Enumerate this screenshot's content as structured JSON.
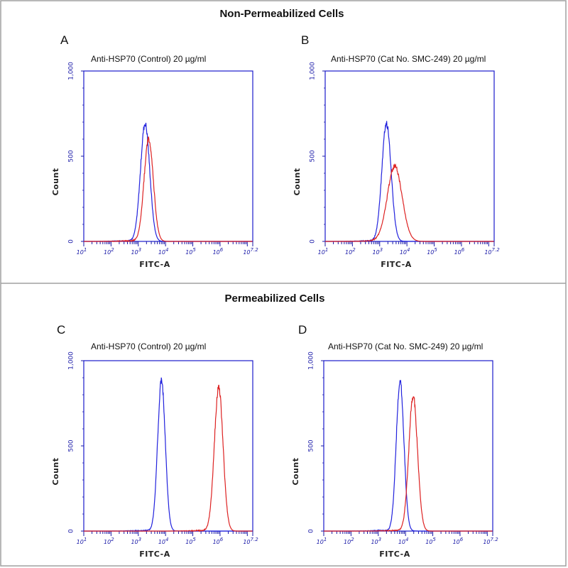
{
  "sections": [
    {
      "title": "Non-Permeabilized Cells"
    },
    {
      "title": "Permeabilized Cells"
    }
  ],
  "colors": {
    "frame": "#999999",
    "plot_border": "#1a1acc",
    "tick_color": "#1a1aa8",
    "control_series": "#2222dd",
    "test_series": "#dd2222"
  },
  "chart_data": [
    {
      "type": "line",
      "panel": "A",
      "title": "Anti-HSP70 (Control) 20 µg/ml",
      "xlabel": "FITC-A",
      "ylabel": "Count",
      "xscale": "log",
      "xlim": [
        1,
        7.2
      ],
      "ylim": [
        0,
        1000
      ],
      "yticks": [
        "0",
        "500",
        "1,000"
      ],
      "xticks": [
        {
          "base": "10",
          "exp": "1"
        },
        {
          "base": "10",
          "exp": "2"
        },
        {
          "base": "10",
          "exp": "3"
        },
        {
          "base": "10",
          "exp": "4"
        },
        {
          "base": "10",
          "exp": "5"
        },
        {
          "base": "10",
          "exp": "6"
        },
        {
          "base": "10",
          "exp": "7.2"
        }
      ],
      "series": [
        {
          "color": "blue",
          "peak_log": 3.25,
          "peak_count": 690,
          "width": 0.17
        },
        {
          "color": "red",
          "peak_log": 3.38,
          "peak_count": 600,
          "width": 0.17
        }
      ]
    },
    {
      "type": "line",
      "panel": "B",
      "title": "Anti-HSP70 (Cat No. SMC-249) 20 µg/ml",
      "xlabel": "FITC-A",
      "ylabel": "Count",
      "xscale": "log",
      "xlim": [
        1,
        7.2
      ],
      "ylim": [
        0,
        1000
      ],
      "yticks": [
        "0",
        "500",
        "1,000"
      ],
      "xticks": [
        {
          "base": "10",
          "exp": "1"
        },
        {
          "base": "10",
          "exp": "2"
        },
        {
          "base": "10",
          "exp": "3"
        },
        {
          "base": "10",
          "exp": "4"
        },
        {
          "base": "10",
          "exp": "5"
        },
        {
          "base": "10",
          "exp": "6"
        },
        {
          "base": "10",
          "exp": "7.2"
        }
      ],
      "series": [
        {
          "color": "blue",
          "peak_log": 3.25,
          "peak_count": 690,
          "width": 0.17
        },
        {
          "color": "red",
          "peak_log": 3.55,
          "peak_count": 440,
          "width": 0.27
        }
      ]
    },
    {
      "type": "line",
      "panel": "C",
      "title": "Anti-HSP70 (Control) 20 µg/ml",
      "xlabel": "FITC-A",
      "ylabel": "Count",
      "xscale": "log",
      "xlim": [
        1,
        7.2
      ],
      "ylim": [
        0,
        1000
      ],
      "yticks": [
        "0",
        "500",
        "1,000"
      ],
      "xticks": [
        {
          "base": "10",
          "exp": "1"
        },
        {
          "base": "10",
          "exp": "2"
        },
        {
          "base": "10",
          "exp": "3"
        },
        {
          "base": "10",
          "exp": "4"
        },
        {
          "base": "10",
          "exp": "5"
        },
        {
          "base": "10",
          "exp": "6"
        },
        {
          "base": "10",
          "exp": "7.2"
        }
      ],
      "series": [
        {
          "color": "blue",
          "peak_log": 3.85,
          "peak_count": 880,
          "width": 0.14
        },
        {
          "color": "red",
          "peak_log": 5.95,
          "peak_count": 840,
          "width": 0.16
        }
      ]
    },
    {
      "type": "line",
      "panel": "D",
      "title": "Anti-HSP70 (Cat No. SMC-249) 20 µg/ml",
      "xlabel": "FITC-A",
      "ylabel": "Count",
      "xscale": "log",
      "xlim": [
        1,
        7.2
      ],
      "ylim": [
        0,
        1000
      ],
      "yticks": [
        "0",
        "500",
        "1,000"
      ],
      "xticks": [
        {
          "base": "10",
          "exp": "1"
        },
        {
          "base": "10",
          "exp": "2"
        },
        {
          "base": "10",
          "exp": "3"
        },
        {
          "base": "10",
          "exp": "4"
        },
        {
          "base": "10",
          "exp": "5"
        },
        {
          "base": "10",
          "exp": "6"
        },
        {
          "base": "10",
          "exp": "7.2"
        }
      ],
      "series": [
        {
          "color": "blue",
          "peak_log": 3.8,
          "peak_count": 880,
          "width": 0.14
        },
        {
          "color": "red",
          "peak_log": 4.28,
          "peak_count": 790,
          "width": 0.16
        }
      ]
    }
  ]
}
